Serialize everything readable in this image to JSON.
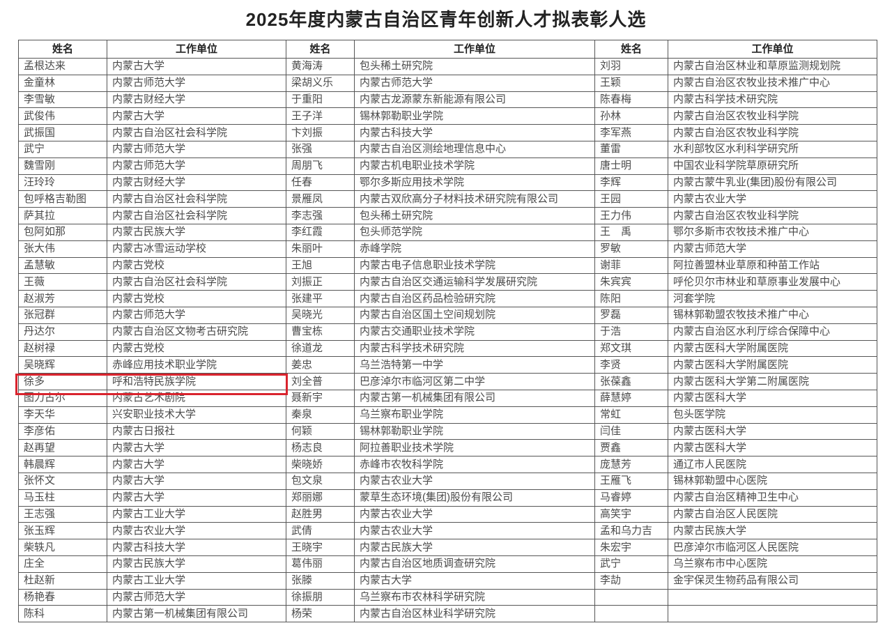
{
  "title": "2025年度内蒙古自治区青年创新人才拟表彰人选",
  "header": {
    "name": "姓名",
    "unit": "工作单位"
  },
  "highlight_color": "#d9232d",
  "highlighted_name": "徐多",
  "rows": [
    [
      "孟根达来",
      "内蒙古大学",
      "黄海涛",
      "包头稀土研究院",
      "刘羽",
      "内蒙古自治区林业和草原监测规划院"
    ],
    [
      "金童林",
      "内蒙古师范大学",
      "梁胡义乐",
      "内蒙古师范大学",
      "王颖",
      "内蒙古自治区农牧业技术推广中心"
    ],
    [
      "李雪敏",
      "内蒙古财经大学",
      "于重阳",
      "内蒙古龙源蒙东新能源有限公司",
      "陈春梅",
      "内蒙古科学技术研究院"
    ],
    [
      "武俊伟",
      "内蒙古大学",
      "王子洋",
      "锡林郭勒职业学院",
      "孙林",
      "内蒙古自治区农牧业科学院"
    ],
    [
      "武振国",
      "内蒙古自治区社会科学院",
      "卞刘振",
      "内蒙古科技大学",
      "李军燕",
      "内蒙古自治区农牧业科学院"
    ],
    [
      "武宁",
      "内蒙古师范大学",
      "张强",
      "内蒙古自治区测绘地理信息中心",
      "董雷",
      "水利部牧区水利科学研究所"
    ],
    [
      "魏雪刚",
      "内蒙古师范大学",
      "周朋飞",
      "内蒙古机电职业技术学院",
      "唐士明",
      "中国农业科学院草原研究所"
    ],
    [
      "汪玲玲",
      "内蒙古财经大学",
      "任春",
      "鄂尔多斯应用技术学院",
      "李辉",
      "内蒙古蒙牛乳业(集团)股份有限公司"
    ],
    [
      "包呼格吉勒图",
      "内蒙古自治区社会科学院",
      "景雁凤",
      "内蒙古双欣高分子材料技术研究院有限公司",
      "王园",
      "内蒙古农业大学"
    ],
    [
      "萨其拉",
      "内蒙古自治区社会科学院",
      "李志强",
      "包头稀土研究院",
      "王力伟",
      "内蒙古自治区农牧业科学院"
    ],
    [
      "包阿如那",
      "内蒙古民族大学",
      "李红霞",
      "包头师范学院",
      "王　禹",
      "鄂尔多斯市农牧技术推广中心"
    ],
    [
      "张大伟",
      "内蒙古冰雪运动学校",
      "朱丽叶",
      "赤峰学院",
      "罗敏",
      "内蒙古师范大学"
    ],
    [
      "孟慧敏",
      "内蒙古党校",
      "王旭",
      "内蒙古电子信息职业技术学院",
      "谢菲",
      "阿拉善盟林业草原和种苗工作站"
    ],
    [
      "王薇",
      "内蒙古自治区社会科学院",
      "刘振正",
      "内蒙古自治区交通运输科学发展研究院",
      "朱宾宾",
      "呼伦贝尔市林业和草原事业发展中心"
    ],
    [
      "赵淑芳",
      "内蒙古党校",
      "张建平",
      "内蒙古自治区药品检验研究院",
      "陈阳",
      "河套学院"
    ],
    [
      "张冠群",
      "内蒙古师范大学",
      "吴晓光",
      "内蒙古自治区国土空间规划院",
      "罗磊",
      "锡林郭勒盟农牧技术推广中心"
    ],
    [
      "丹达尔",
      "内蒙古自治区文物考古研究院",
      "曹宝栋",
      "内蒙古交通职业技术学院",
      "于浩",
      "内蒙古自治区水利厅综合保障中心"
    ],
    [
      "赵树禄",
      "内蒙古党校",
      "徐道龙",
      "内蒙古科学技术研究院",
      "郑文琪",
      "内蒙古医科大学附属医院"
    ],
    [
      "吴晓辉",
      "赤峰应用技术职业学院",
      "姜忠",
      "乌兰浩特第一中学",
      "李贤",
      "内蒙古医科大学附属医院"
    ],
    [
      "徐多",
      "呼和浩特民族学院",
      "刘全普",
      "巴彦淖尔市临河区第二中学",
      "张葆鑫",
      "内蒙古医科大学第二附属医院"
    ],
    [
      "图力古尔",
      "内蒙古艺术剧院",
      "聂新宇",
      "内蒙古第一机械集团有限公司",
      "薛慧婷",
      "内蒙古医科大学"
    ],
    [
      "李天华",
      "兴安职业技术大学",
      "秦泉",
      "乌兰察布职业学院",
      "常虹",
      "包头医学院"
    ],
    [
      "李彦佑",
      "内蒙古日报社",
      "何颖",
      "锡林郭勒职业学院",
      "闫佳",
      "内蒙古医科大学"
    ],
    [
      "赵再望",
      "内蒙古大学",
      "杨志良",
      "阿拉善职业技术学院",
      "贾鑫",
      "内蒙古医科大学"
    ],
    [
      "韩晨辉",
      "内蒙古大学",
      "柴晓娇",
      "赤峰市农牧科学院",
      "庞慧芳",
      "通辽市人民医院"
    ],
    [
      "张怀文",
      "内蒙古大学",
      "包文泉",
      "内蒙古农业大学",
      "王雁飞",
      "锡林郭勒盟中心医院"
    ],
    [
      "马玉柱",
      "内蒙古大学",
      "郑丽娜",
      "蒙草生态环境(集团)股份有限公司",
      "马睿婷",
      "内蒙古自治区精神卫生中心"
    ],
    [
      "王志强",
      "内蒙古工业大学",
      "赵胜男",
      "内蒙古农业大学",
      "高笑宇",
      "内蒙古自治区人民医院"
    ],
    [
      "张玉辉",
      "内蒙古农业大学",
      "武倩",
      "内蒙古农业大学",
      "孟和乌力吉",
      "内蒙古民族大学"
    ],
    [
      "柴轶凡",
      "内蒙古科技大学",
      "王晓宇",
      "内蒙古民族大学",
      "朱宏宇",
      "巴彦淖尔市临河区人民医院"
    ],
    [
      "庄全",
      "内蒙古民族大学",
      "葛伟丽",
      "内蒙古自治区地质调查研究院",
      "武宁",
      "乌兰察布市中心医院"
    ],
    [
      "杜赵新",
      "内蒙古工业大学",
      "张滕",
      "内蒙古大学",
      "李劼",
      "金宇保灵生物药品有限公司"
    ],
    [
      "杨艳春",
      "内蒙古师范大学",
      "徐振朋",
      "乌兰察布市农林科学研究院",
      "",
      ""
    ],
    [
      "陈科",
      "内蒙古第一机械集团有限公司",
      "杨荣",
      "内蒙古自治区林业科学研究院",
      "",
      ""
    ]
  ]
}
